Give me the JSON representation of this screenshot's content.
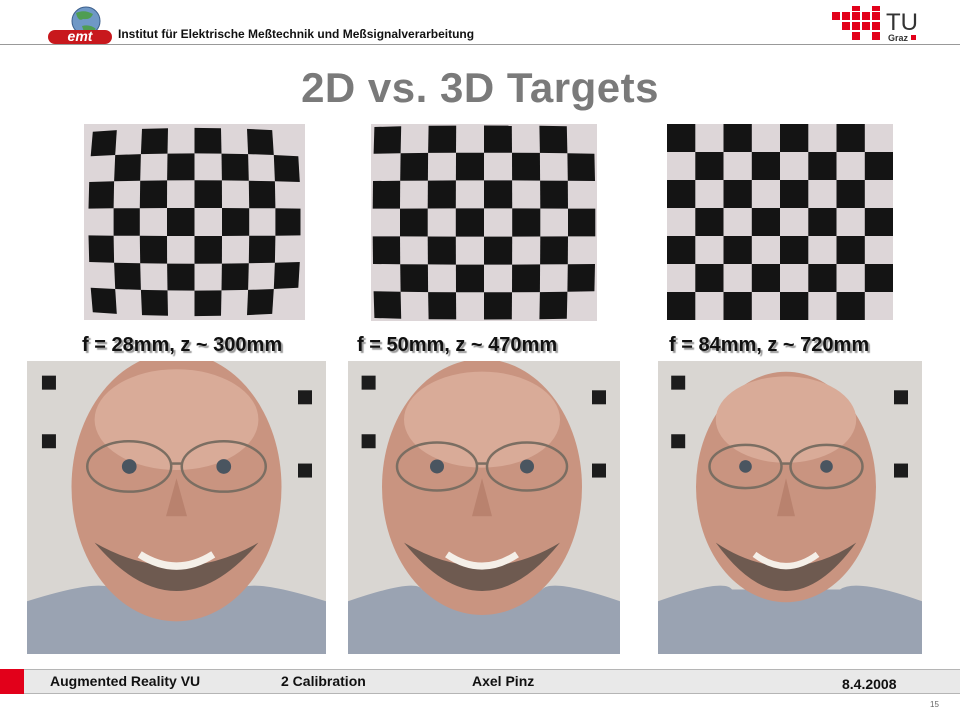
{
  "header": {
    "logo_text": "emt",
    "institute": "Institut für Elektrische Meßtechnik und Meßsignalverarbeitung",
    "tu_logo_main": "TU",
    "tu_logo_sub": "Graz"
  },
  "slide": {
    "title": "2D vs. 3D Targets",
    "captions": [
      "f = 28mm, z ~ 300mm",
      "f = 50mm, z ~ 470mm",
      "f = 84mm, z ~ 720mm"
    ]
  },
  "footer": {
    "course": "Augmented Reality VU",
    "chapter": "2 Calibration",
    "author": "Axel Pinz",
    "date": "8.4.2008",
    "page": "15"
  },
  "colors": {
    "brand_red": "#e2001a",
    "title_gray": "#7a7a7a"
  }
}
